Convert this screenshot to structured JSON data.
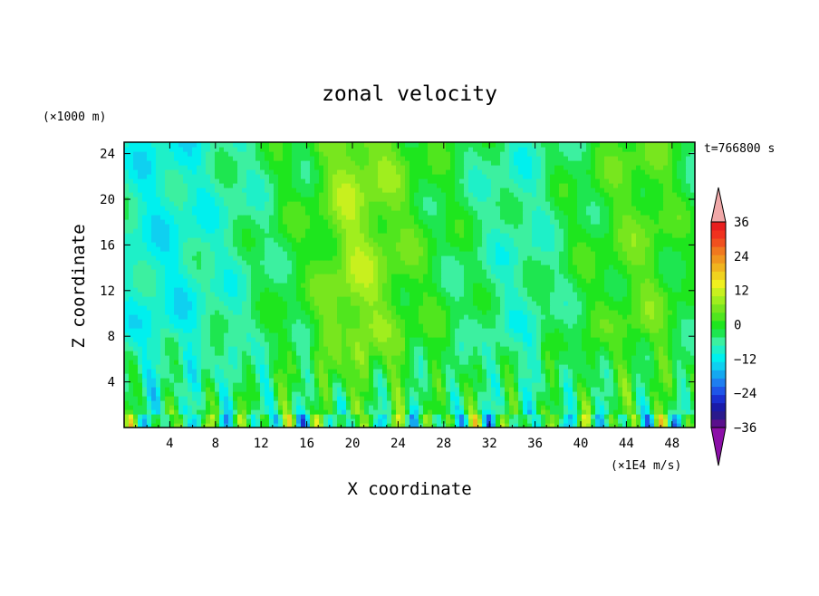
{
  "chart_data": {
    "type": "heatmap",
    "title": "zonal velocity",
    "xlabel": "X coordinate",
    "ylabel": "Z coordinate",
    "y_unit_label": "(×1000 m)",
    "colorbar_unit_label": "(×1E4 m/s)",
    "time_label": "t=766800 s",
    "xlim": [
      0,
      50
    ],
    "ylim": [
      0,
      25
    ],
    "x_ticks": [
      4,
      8,
      12,
      16,
      20,
      24,
      28,
      32,
      36,
      40,
      44,
      48
    ],
    "y_ticks": [
      4,
      8,
      12,
      16,
      20,
      24
    ],
    "x_tick_labels": [
      "4",
      "8",
      "12",
      "16",
      "20",
      "24",
      "28",
      "32",
      "36",
      "40",
      "44",
      "48"
    ],
    "y_tick_labels": [
      "4",
      "8",
      "12",
      "16",
      "20",
      "24"
    ],
    "colorbar": {
      "levels": [
        -42,
        -39,
        -36,
        -33,
        -30,
        -27,
        -24,
        -21,
        -18,
        -15,
        -12,
        -9,
        -6,
        -3,
        0,
        3,
        6,
        9,
        12,
        15,
        18,
        21,
        24,
        27,
        30,
        33,
        36,
        39,
        42
      ],
      "tick_values": [
        36,
        24,
        12,
        0,
        -12,
        -24,
        -36
      ],
      "tick_labels": [
        "36",
        "24",
        "12",
        "0",
        "−12",
        "−24",
        "−36"
      ],
      "colors": [
        "#5a0f8c",
        "#2a1a8c",
        "#1a1aa8",
        "#1a2fd0",
        "#1e55e8",
        "#1e7ef0",
        "#14a8f0",
        "#0fd0f0",
        "#00f0ee",
        "#1ef0c8",
        "#3cf0a0",
        "#1ee650",
        "#1ee61e",
        "#50e61e",
        "#78e61e",
        "#a0ee1e",
        "#c8f01e",
        "#f0f01e",
        "#f0d21e",
        "#f0b41e",
        "#f0961e",
        "#f0781e",
        "#f0501e",
        "#f0321e",
        "#e81e1e"
      ],
      "under_color": "#8c0fa8",
      "over_color": "#f0a8a8"
    },
    "field_description_values": {
      "x_bands": [
        0,
        2,
        4,
        6,
        8,
        10,
        12,
        14,
        16,
        18,
        20,
        22,
        24,
        26,
        28,
        30,
        32,
        34,
        36,
        38,
        40,
        42,
        44,
        46,
        48,
        50
      ],
      "upper_mean": [
        -7,
        -9,
        -9,
        -8,
        -6,
        -5,
        -3,
        0,
        1,
        6,
        10,
        8,
        5,
        2,
        0,
        -2,
        -4,
        -6,
        -5,
        -2,
        0,
        2,
        4,
        5,
        2,
        -1
      ]
    }
  }
}
